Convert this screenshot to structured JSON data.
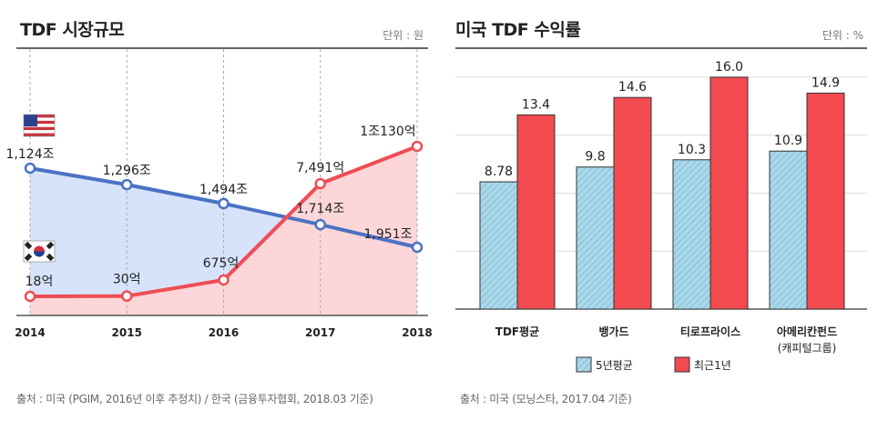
{
  "left_panel": {
    "title": "TDF 시장규모",
    "unit": "단위 : 원",
    "source": "출처 : 미국 (PGIM, 2016년 이후 추정치) / 한국 (금융투자협회, 2018.03 기준)"
  },
  "right_panel": {
    "title": "미국 TDF 수익률",
    "unit": "단위 : %",
    "source": "출처 : 미국 (모닝스타, 2017.04 기준)"
  },
  "colors": {
    "us_line": "#4a72c4",
    "us_fill": "#d6e3fb",
    "kr_line": "#ee4d54",
    "kr_fill": "#fcd6d8",
    "bar_5yr": "#a9d8ea",
    "bar_recent": "#f24a4f"
  },
  "chart_data": [
    {
      "type": "line",
      "title": "TDF 시장규모",
      "unit": "단위 : 원",
      "x": [
        "2014",
        "2015",
        "2016",
        "2017",
        "2018"
      ],
      "series": [
        {
          "country": "US",
          "icon": "us-flag-icon",
          "values": [
            1124,
            1296,
            1494,
            1714,
            1951
          ],
          "value_unit": "조 원",
          "labels": [
            "1,124조",
            "1,296조",
            "1,494조",
            "1,714조",
            "1,951조"
          ]
        },
        {
          "country": "KR",
          "icon": "korea-flag-icon",
          "values": [
            18,
            30,
            675,
            7491,
            10130
          ],
          "value_unit": "억 원",
          "labels": [
            "18억",
            "30억",
            "675억",
            "7,491억",
            "1조130억"
          ]
        }
      ],
      "grid": "vertical dashed"
    },
    {
      "type": "bar",
      "title": "미국 TDF 수익률",
      "unit": "단위 : %",
      "categories": [
        "TDF평균",
        "뱅가드",
        "티로프라이스",
        "아메리칸펀드"
      ],
      "category_sublabels": [
        "",
        "",
        "",
        "(캐피털그룹)"
      ],
      "ylim": [
        0,
        18
      ],
      "series": [
        {
          "name": "5년평균",
          "values": [
            8.78,
            9.8,
            10.3,
            10.9
          ],
          "labels": [
            "8.78",
            "9.8",
            "10.3",
            "10.9"
          ]
        },
        {
          "name": "최근1년",
          "values": [
            13.4,
            14.6,
            16.0,
            14.9
          ],
          "labels": [
            "13.4",
            "14.6",
            "16.0",
            "14.9"
          ]
        }
      ],
      "legend": "bottom",
      "grid": "horizontal"
    }
  ]
}
